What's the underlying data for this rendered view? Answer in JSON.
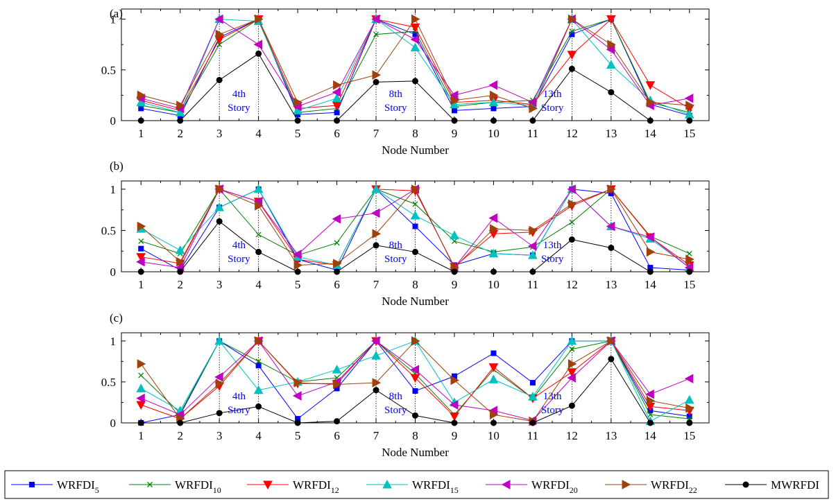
{
  "figure": {
    "legend": [
      {
        "key": "WRFDI_5",
        "base": "WRFDI",
        "sub": "5"
      },
      {
        "key": "WRFDI_10",
        "base": "WRFDI",
        "sub": "10"
      },
      {
        "key": "WRFDI_12",
        "base": "WRFDI",
        "sub": "12"
      },
      {
        "key": "WRFDI_15",
        "base": "WRFDI",
        "sub": "15"
      },
      {
        "key": "WRFDI_20",
        "base": "WRFDI",
        "sub": "20"
      },
      {
        "key": "WRFDI_22",
        "base": "WRFDI",
        "sub": "22"
      },
      {
        "key": "MWRFDI",
        "base": "MWRFDI",
        "sub": ""
      }
    ]
  },
  "chart_data": [
    {
      "type": "line",
      "panel_label": "(a)",
      "xlabel": "Node Number",
      "ylabel": "",
      "x": [
        1,
        2,
        3,
        4,
        5,
        6,
        7,
        8,
        9,
        10,
        11,
        12,
        13,
        14,
        15
      ],
      "xlim": [
        0.5,
        15.5
      ],
      "ylim": [
        0,
        1.1
      ],
      "yticks": [
        0,
        0.5,
        1
      ],
      "ytick_labels": [
        "0",
        "0.5",
        "1"
      ],
      "grid": false,
      "annotations": [
        {
          "x": 4,
          "line1": "4th",
          "line2": "Story"
        },
        {
          "x": 8,
          "line1": "8th",
          "line2": "Story"
        },
        {
          "x": 12,
          "line1": "13th",
          "line2": "Story"
        }
      ],
      "story_lines": [
        3,
        4,
        7,
        8,
        12,
        13
      ],
      "series": [
        {
          "key": "WRFDI_5",
          "color": "#0000ff",
          "marker": "square",
          "values": [
            0.12,
            0.05,
            0.82,
            1.0,
            0.06,
            0.08,
            1.0,
            0.85,
            0.1,
            0.12,
            0.14,
            0.85,
            1.0,
            0.16,
            0.05
          ]
        },
        {
          "key": "WRFDI_10",
          "color": "#008000",
          "marker": "x",
          "values": [
            0.15,
            0.08,
            0.75,
            1.0,
            0.08,
            0.12,
            0.85,
            0.88,
            0.14,
            0.18,
            0.2,
            0.88,
            1.0,
            0.18,
            0.08
          ]
        },
        {
          "key": "WRFDI_12",
          "color": "#ff0000",
          "marker": "triangle-down",
          "values": [
            0.2,
            0.1,
            0.8,
            1.0,
            0.12,
            0.15,
            1.0,
            0.92,
            0.18,
            0.2,
            0.16,
            0.65,
            1.0,
            0.35,
            0.12
          ]
        },
        {
          "key": "WRFDI_15",
          "color": "#00c0c0",
          "marker": "triangle-up",
          "values": [
            0.18,
            0.08,
            1.0,
            0.98,
            0.1,
            0.22,
            1.0,
            0.72,
            0.16,
            0.18,
            0.15,
            1.0,
            0.55,
            0.2,
            0.06
          ]
        },
        {
          "key": "WRFDI_20",
          "color": "#c000c0",
          "marker": "triangle-left",
          "values": [
            0.22,
            0.12,
            1.0,
            0.75,
            0.14,
            0.28,
            1.0,
            0.8,
            0.25,
            0.35,
            0.18,
            1.0,
            0.7,
            0.15,
            0.22
          ]
        },
        {
          "key": "WRFDI_22",
          "color": "#a0400a",
          "marker": "triangle-right",
          "values": [
            0.25,
            0.15,
            0.85,
            1.0,
            0.18,
            0.35,
            0.45,
            1.0,
            0.2,
            0.25,
            0.12,
            1.0,
            0.75,
            0.18,
            0.15
          ]
        },
        {
          "key": "MWRFDI",
          "color": "#000000",
          "marker": "circle",
          "values": [
            0.0,
            0.0,
            0.4,
            0.66,
            0.0,
            0.0,
            0.38,
            0.39,
            0.0,
            0.0,
            0.0,
            0.51,
            0.28,
            0.0,
            0.0
          ]
        }
      ]
    },
    {
      "type": "line",
      "panel_label": "(b)",
      "xlabel": "Node Number",
      "ylabel": "",
      "x": [
        1,
        2,
        3,
        4,
        5,
        6,
        7,
        8,
        9,
        10,
        11,
        12,
        13,
        14,
        15
      ],
      "xlim": [
        0.5,
        15.5
      ],
      "ylim": [
        0,
        1.1
      ],
      "yticks": [
        0,
        0.5,
        1
      ],
      "ytick_labels": [
        "0",
        "0.5",
        "1"
      ],
      "grid": false,
      "annotations": [
        {
          "x": 4,
          "line1": "4th",
          "line2": "Story"
        },
        {
          "x": 8,
          "line1": "8th",
          "line2": "Story"
        },
        {
          "x": 12,
          "line1": "13th",
          "line2": "Story"
        }
      ],
      "story_lines": [
        3,
        4,
        7,
        8,
        12,
        13
      ],
      "series": [
        {
          "key": "WRFDI_5",
          "color": "#0000ff",
          "marker": "square",
          "values": [
            0.28,
            0.02,
            0.78,
            1.0,
            0.15,
            0.02,
            1.0,
            0.55,
            0.08,
            0.22,
            0.2,
            1.0,
            0.95,
            0.05,
            0.02
          ]
        },
        {
          "key": "WRFDI_10",
          "color": "#008000",
          "marker": "x",
          "values": [
            0.37,
            0.22,
            1.0,
            0.45,
            0.2,
            0.35,
            1.0,
            0.82,
            0.37,
            0.24,
            0.3,
            0.6,
            1.0,
            0.43,
            0.22
          ]
        },
        {
          "key": "WRFDI_12",
          "color": "#ff0000",
          "marker": "triangle-down",
          "values": [
            0.18,
            0.1,
            1.0,
            0.85,
            0.15,
            0.08,
            1.0,
            0.98,
            0.06,
            0.46,
            0.48,
            0.8,
            1.0,
            0.42,
            0.08
          ]
        },
        {
          "key": "WRFDI_15",
          "color": "#00c0c0",
          "marker": "triangle-up",
          "values": [
            0.52,
            0.26,
            0.78,
            1.0,
            0.18,
            0.08,
            1.0,
            0.68,
            0.44,
            0.22,
            0.2,
            1.0,
            0.55,
            0.4,
            0.05
          ]
        },
        {
          "key": "WRFDI_20",
          "color": "#c000c0",
          "marker": "triangle-left",
          "values": [
            0.12,
            0.05,
            1.0,
            0.85,
            0.21,
            0.64,
            0.71,
            1.0,
            0.05,
            0.65,
            0.31,
            1.0,
            0.55,
            0.42,
            0.05
          ]
        },
        {
          "key": "WRFDI_22",
          "color": "#a0400a",
          "marker": "triangle-right",
          "values": [
            0.55,
            0.12,
            1.0,
            0.8,
            0.08,
            0.1,
            0.46,
            1.0,
            0.05,
            0.52,
            0.5,
            0.82,
            1.0,
            0.24,
            0.15
          ]
        },
        {
          "key": "MWRFDI",
          "color": "#000000",
          "marker": "circle",
          "values": [
            0.0,
            0.0,
            0.61,
            0.24,
            0.0,
            0.0,
            0.32,
            0.24,
            0.0,
            0.0,
            0.0,
            0.39,
            0.29,
            0.0,
            0.0
          ]
        }
      ]
    },
    {
      "type": "line",
      "panel_label": "(c)",
      "xlabel": "Node Number",
      "ylabel": "",
      "x": [
        1,
        2,
        3,
        4,
        5,
        6,
        7,
        8,
        9,
        10,
        11,
        12,
        13,
        14,
        15
      ],
      "xlim": [
        0.5,
        15.5
      ],
      "ylim": [
        0,
        1.1
      ],
      "yticks": [
        0,
        0.5,
        1
      ],
      "ytick_labels": [
        "0",
        "0.5",
        "1"
      ],
      "grid": false,
      "annotations": [
        {
          "x": 4,
          "line1": "4th",
          "line2": "Story"
        },
        {
          "x": 8,
          "line1": "8th",
          "line2": "Story"
        },
        {
          "x": 12,
          "line1": "13th",
          "line2": "Story"
        }
      ],
      "story_lines": [
        3,
        4,
        7,
        8,
        12,
        13
      ],
      "series": [
        {
          "key": "WRFDI_5",
          "color": "#0000ff",
          "marker": "square",
          "values": [
            0.0,
            0.1,
            1.0,
            0.7,
            0.05,
            0.42,
            1.0,
            0.39,
            0.57,
            0.85,
            0.49,
            1.0,
            1.0,
            0.15,
            0.08
          ]
        },
        {
          "key": "WRFDI_10",
          "color": "#008000",
          "marker": "x",
          "values": [
            0.58,
            0.12,
            1.0,
            0.75,
            0.5,
            0.55,
            1.0,
            0.6,
            0.1,
            0.65,
            0.3,
            0.9,
            1.0,
            0.1,
            0.05
          ]
        },
        {
          "key": "WRFDI_12",
          "color": "#ff0000",
          "marker": "triangle-down",
          "values": [
            0.22,
            0.05,
            0.45,
            1.0,
            0.48,
            0.48,
            1.0,
            0.55,
            0.08,
            0.68,
            0.3,
            0.62,
            1.0,
            0.2,
            0.15
          ]
        },
        {
          "key": "WRFDI_15",
          "color": "#00c0c0",
          "marker": "triangle-up",
          "values": [
            0.42,
            0.15,
            1.0,
            0.4,
            0.5,
            0.65,
            0.82,
            1.0,
            0.25,
            0.53,
            0.32,
            1.0,
            1.0,
            0.02,
            0.28
          ]
        },
        {
          "key": "WRFDI_20",
          "color": "#c000c0",
          "marker": "triangle-left",
          "values": [
            0.3,
            0.1,
            0.56,
            1.0,
            0.33,
            0.5,
            1.0,
            0.65,
            0.22,
            0.15,
            0.03,
            0.55,
            1.0,
            0.35,
            0.54
          ]
        },
        {
          "key": "WRFDI_22",
          "color": "#a0400a",
          "marker": "triangle-right",
          "values": [
            0.72,
            0.05,
            0.48,
            1.0,
            0.49,
            0.47,
            0.49,
            1.0,
            0.52,
            0.1,
            0.02,
            0.72,
            1.0,
            0.27,
            0.18
          ]
        },
        {
          "key": "MWRFDI",
          "color": "#000000",
          "marker": "circle",
          "values": [
            0.0,
            0.0,
            0.12,
            0.2,
            0.0,
            0.02,
            0.4,
            0.09,
            0.0,
            0.0,
            0.0,
            0.21,
            0.78,
            0.0,
            0.0
          ]
        }
      ]
    }
  ]
}
